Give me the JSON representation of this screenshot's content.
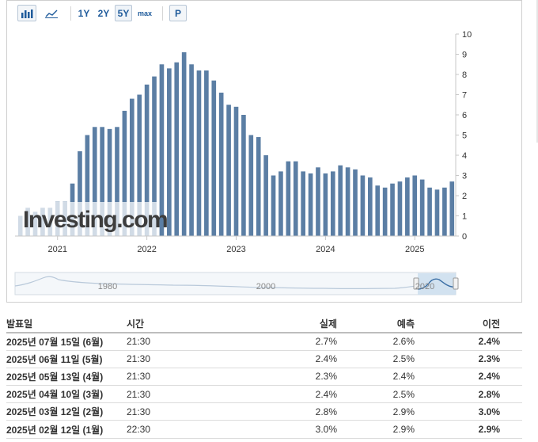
{
  "toolbar": {
    "range_1y": "1Y",
    "range_2y": "2Y",
    "range_5y": "5Y",
    "range_max": "max",
    "p_label": "P"
  },
  "watermark": "Investing.com",
  "navigator": {
    "labels": [
      "1980",
      "2000",
      "2020"
    ]
  },
  "colors": {
    "bar": "#5b7ea4",
    "up": "#d8202a",
    "down": "#1a8fc9"
  },
  "chart_data": {
    "type": "bar",
    "x_start": "2020-08",
    "x_tick_labels": [
      "2021",
      "2022",
      "2023",
      "2024",
      "2025"
    ],
    "x_tick_months": [
      "2021-01",
      "2022-01",
      "2023-01",
      "2024-01",
      "2025-01"
    ],
    "ylim": [
      0,
      10
    ],
    "y_ticks": [
      "0",
      "1",
      "2",
      "3",
      "4",
      "5",
      "6",
      "7",
      "8",
      "9",
      "10"
    ],
    "grid": false,
    "values": [
      1.0,
      1.4,
      1.2,
      1.4,
      1.4,
      1.7,
      1.7,
      2.6,
      4.2,
      5.0,
      5.4,
      5.4,
      5.3,
      5.4,
      6.2,
      6.8,
      7.0,
      7.5,
      7.9,
      8.5,
      8.3,
      8.6,
      9.1,
      8.5,
      8.2,
      8.2,
      7.7,
      7.1,
      6.5,
      6.4,
      6.0,
      5.0,
      4.9,
      4.0,
      3.0,
      3.2,
      3.7,
      3.7,
      3.2,
      3.1,
      3.4,
      3.1,
      3.2,
      3.5,
      3.4,
      3.3,
      3.0,
      2.9,
      2.5,
      2.4,
      2.6,
      2.7,
      2.9,
      3.0,
      2.8,
      2.4,
      2.3,
      2.4,
      2.7
    ]
  },
  "table": {
    "headers": {
      "date": "발표일",
      "time": "시간",
      "actual": "실제",
      "forecast": "예측",
      "previous": "이전"
    },
    "rows": [
      {
        "date": "2025년 07월 15일 (6월)",
        "time": "21:30",
        "actual": "2.7%",
        "dir": "up",
        "forecast": "2.6%",
        "previous": "2.4%"
      },
      {
        "date": "2025년 06월 11일 (5월)",
        "time": "21:30",
        "actual": "2.4%",
        "dir": "down",
        "forecast": "2.5%",
        "previous": "2.3%"
      },
      {
        "date": "2025년 05월 13일 (4월)",
        "time": "21:30",
        "actual": "2.3%",
        "dir": "down",
        "forecast": "2.4%",
        "previous": "2.4%"
      },
      {
        "date": "2025년 04월 10일 (3월)",
        "time": "21:30",
        "actual": "2.4%",
        "dir": "down",
        "forecast": "2.5%",
        "previous": "2.8%"
      },
      {
        "date": "2025년 03월 12일 (2월)",
        "time": "21:30",
        "actual": "2.8%",
        "dir": "down",
        "forecast": "2.9%",
        "previous": "3.0%"
      },
      {
        "date": "2025년 02월 12일 (1월)",
        "time": "22:30",
        "actual": "3.0%",
        "dir": "up",
        "forecast": "2.9%",
        "previous": "2.9%"
      }
    ]
  }
}
